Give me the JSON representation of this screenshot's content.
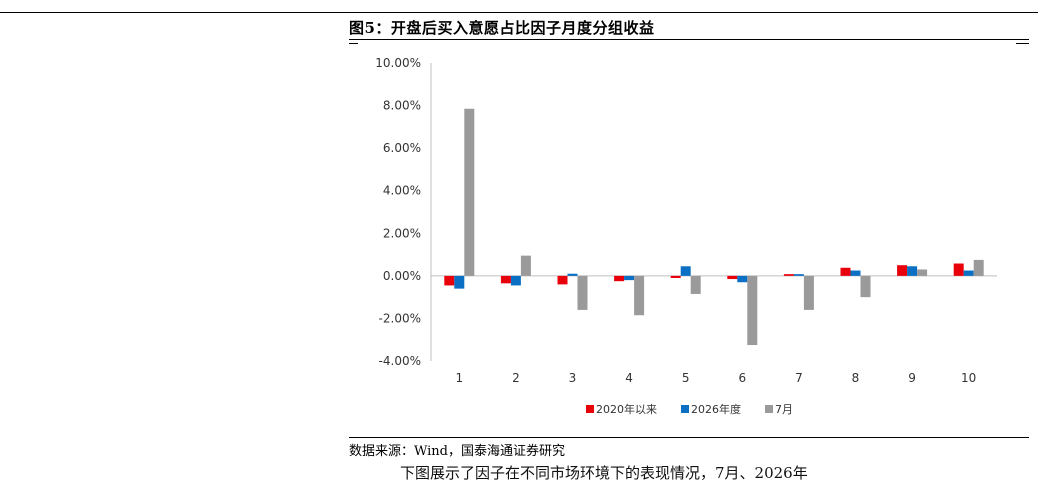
{
  "figure": {
    "title": "图5：开盘后买入意愿占比因子月度分组收益",
    "source": "数据来源：Wind，国泰海通证券研究",
    "trailing_text": "下图展示了因子在不同市场环境下的表现情况，7月、2026年"
  },
  "chart_data": {
    "type": "bar",
    "categories": [
      "1",
      "2",
      "3",
      "4",
      "5",
      "6",
      "7",
      "8",
      "9",
      "10"
    ],
    "series": [
      {
        "name": "2020年以来",
        "color": "#e8000b",
        "values": [
          -0.45,
          -0.35,
          -0.4,
          -0.25,
          -0.1,
          -0.15,
          0.08,
          0.38,
          0.5,
          0.58
        ]
      },
      {
        "name": "2026年度",
        "color": "#0b6fc4",
        "values": [
          -0.6,
          -0.45,
          0.1,
          -0.2,
          0.45,
          -0.3,
          0.08,
          0.25,
          0.45,
          0.25
        ]
      },
      {
        "name": "7月",
        "color": "#9a9a9a",
        "values": [
          7.85,
          0.95,
          -1.6,
          -1.85,
          -0.85,
          -3.25,
          -1.6,
          -1.0,
          0.3,
          0.75
        ]
      }
    ],
    "yticks": [
      "10.00%",
      "8.00%",
      "6.00%",
      "4.00%",
      "2.00%",
      "0.00%",
      "-2.00%",
      "-4.00%"
    ],
    "ylim": [
      -4,
      10
    ],
    "legend_position": "bottom"
  }
}
